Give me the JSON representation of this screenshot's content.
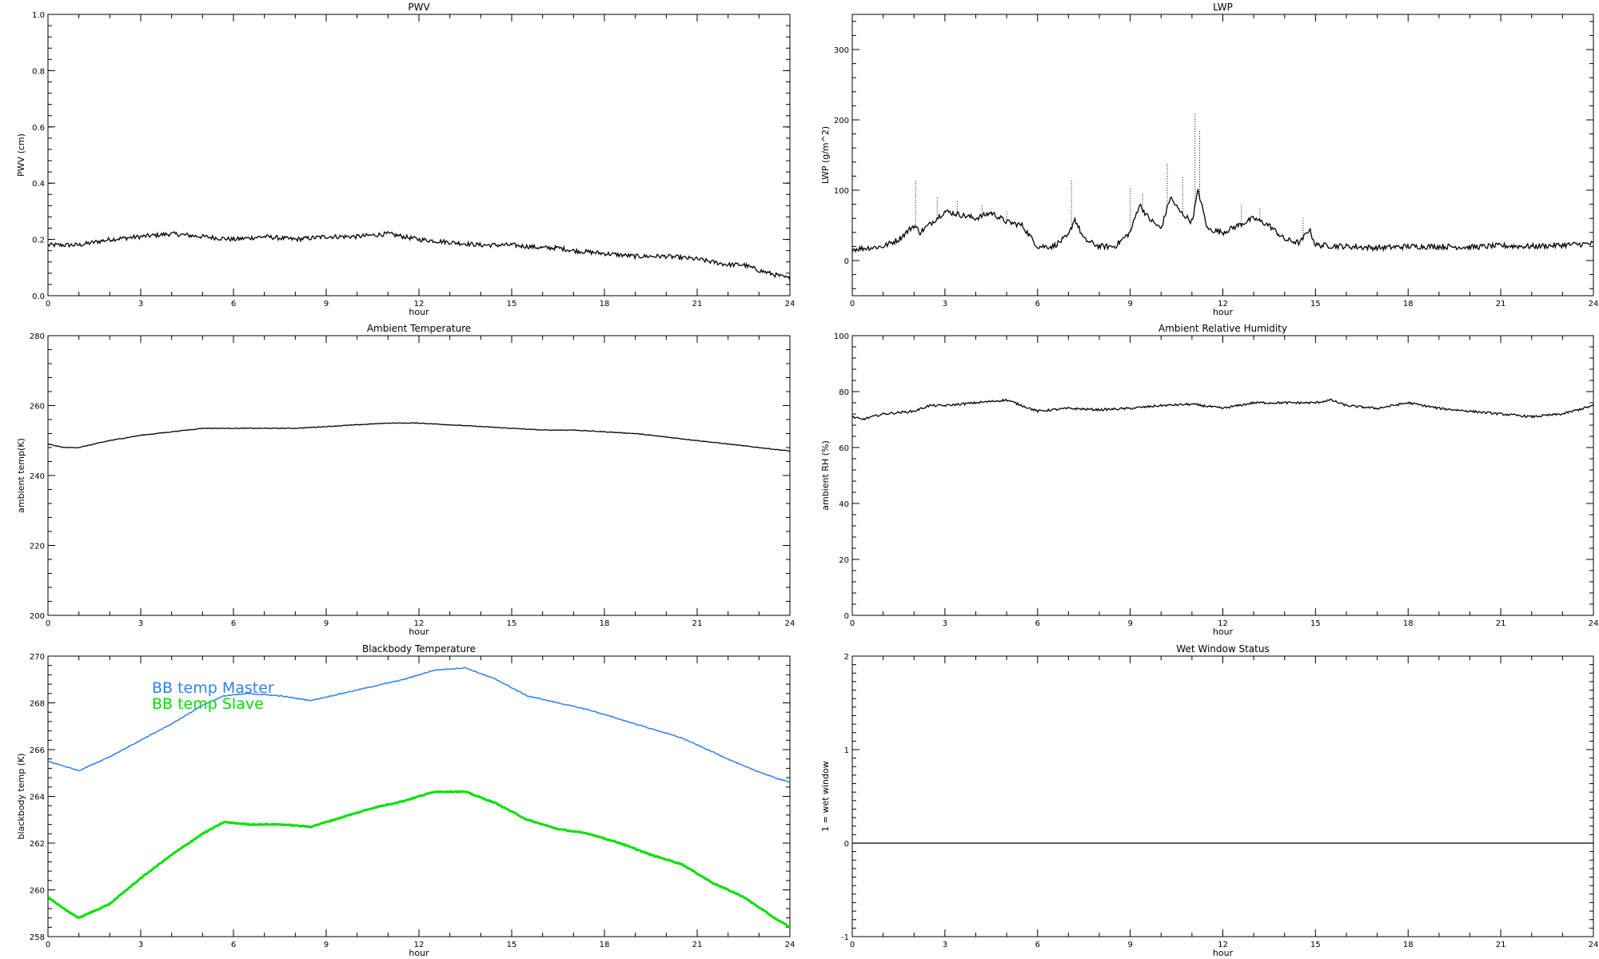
{
  "chart_data": [
    {
      "type": "line",
      "title": "PWV",
      "xlabel": "hour",
      "ylabel": "PWV (cm)",
      "xlim": [
        0,
        24
      ],
      "ylim": [
        0.0,
        1.0
      ],
      "xticks": [
        "0",
        "3",
        "6",
        "9",
        "12",
        "15",
        "18",
        "21",
        "24"
      ],
      "yticks": [
        "0.0",
        "0.2",
        "0.4",
        "0.6",
        "0.8",
        "1.0"
      ],
      "series": [
        {
          "color": "#000000",
          "noise": 0.008,
          "x": [
            0,
            1,
            2,
            3,
            4,
            5,
            6,
            7,
            8,
            9,
            10,
            11,
            11.5,
            12,
            13,
            14,
            15,
            16,
            16.5,
            17,
            18,
            19,
            20,
            21,
            22,
            22.5,
            23,
            24
          ],
          "values": [
            0.18,
            0.18,
            0.2,
            0.21,
            0.22,
            0.21,
            0.2,
            0.21,
            0.2,
            0.21,
            0.21,
            0.22,
            0.21,
            0.2,
            0.19,
            0.18,
            0.18,
            0.17,
            0.17,
            0.16,
            0.15,
            0.14,
            0.14,
            0.13,
            0.11,
            0.11,
            0.09,
            0.06
          ]
        }
      ]
    },
    {
      "type": "line",
      "title": "LWP",
      "xlabel": "hour",
      "ylabel": "LWP (g/m^2)",
      "xlim": [
        0,
        24
      ],
      "ylim": [
        -50,
        350
      ],
      "xticks": [
        "0",
        "3",
        "6",
        "9",
        "12",
        "15",
        "18",
        "21",
        "24"
      ],
      "yticks": [
        "0",
        "100",
        "200",
        "300"
      ],
      "series": [
        {
          "color": "#000000",
          "noise": 4,
          "x": [
            0,
            1,
            1.5,
            2,
            2.2,
            2.6,
            3,
            3.5,
            4,
            4.5,
            5,
            5.5,
            6,
            6.5,
            7,
            7.2,
            7.5,
            8,
            8.5,
            9,
            9.3,
            9.6,
            10,
            10.3,
            10.6,
            11,
            11.2,
            11.5,
            12,
            12.5,
            13,
            13.5,
            14,
            14.5,
            14.8,
            15,
            16,
            17,
            18,
            19,
            20,
            21,
            22,
            23,
            24
          ],
          "values": [
            16,
            20,
            30,
            50,
            40,
            55,
            70,
            65,
            60,
            68,
            55,
            50,
            20,
            20,
            35,
            60,
            30,
            20,
            20,
            40,
            80,
            60,
            45,
            90,
            70,
            55,
            100,
            45,
            40,
            50,
            60,
            50,
            30,
            25,
            45,
            22,
            20,
            18,
            20,
            20,
            19,
            21,
            20,
            22,
            24
          ],
          "spikes": [
            {
              "x": 2.05,
              "v": 115
            },
            {
              "x": 2.75,
              "v": 90
            },
            {
              "x": 3.4,
              "v": 85
            },
            {
              "x": 4.2,
              "v": 80
            },
            {
              "x": 5.0,
              "v": 70
            },
            {
              "x": 7.1,
              "v": 115
            },
            {
              "x": 9.0,
              "v": 105
            },
            {
              "x": 9.4,
              "v": 95
            },
            {
              "x": 10.2,
              "v": 138
            },
            {
              "x": 10.7,
              "v": 120
            },
            {
              "x": 11.1,
              "v": 210
            },
            {
              "x": 11.25,
              "v": 185
            },
            {
              "x": 12.6,
              "v": 80
            },
            {
              "x": 13.2,
              "v": 75
            },
            {
              "x": 14.6,
              "v": 60
            }
          ]
        }
      ]
    },
    {
      "type": "line",
      "title": "Ambient Temperature",
      "xlabel": "hour",
      "ylabel": "ambient temp(K)",
      "xlim": [
        0,
        24
      ],
      "ylim": [
        200,
        280
      ],
      "xticks": [
        "0",
        "3",
        "6",
        "9",
        "12",
        "15",
        "18",
        "21",
        "24"
      ],
      "yticks": [
        "200",
        "220",
        "240",
        "260",
        "280"
      ],
      "series": [
        {
          "color": "#000000",
          "noise": 0.1,
          "x": [
            0,
            0.5,
            1,
            2,
            3,
            4,
            5,
            6,
            7,
            8,
            9,
            10,
            11,
            12,
            13,
            14,
            15,
            16,
            17,
            18,
            19,
            20,
            21,
            22,
            23,
            24
          ],
          "values": [
            249,
            248,
            248,
            250,
            251.5,
            252.5,
            253.5,
            253.5,
            253.5,
            253.5,
            254,
            254.5,
            255,
            255,
            254.5,
            254,
            253.5,
            253,
            253,
            252.5,
            252,
            251,
            250,
            249,
            248,
            247
          ]
        }
      ]
    },
    {
      "type": "line",
      "title": "Ambient Relative Humidity",
      "xlabel": "hour",
      "ylabel": "ambient RH (%)",
      "xlim": [
        0,
        24
      ],
      "ylim": [
        0,
        100
      ],
      "xticks": [
        "0",
        "3",
        "6",
        "9",
        "12",
        "15",
        "18",
        "21",
        "24"
      ],
      "yticks": [
        "0",
        "20",
        "40",
        "60",
        "80",
        "100"
      ],
      "series": [
        {
          "color": "#000000",
          "noise": 0.4,
          "x": [
            0,
            0.3,
            1,
            2,
            2.5,
            3,
            4,
            5,
            5.5,
            6,
            7,
            8,
            9,
            10,
            11,
            12,
            13,
            14,
            15,
            15.5,
            16,
            17,
            18,
            19,
            20,
            21,
            22,
            23,
            24
          ],
          "values": [
            71,
            70,
            72,
            73,
            75,
            75,
            76,
            77,
            75,
            73,
            74,
            73.5,
            74,
            75,
            75.5,
            74,
            76,
            76,
            76,
            77,
            75,
            74,
            76,
            74,
            73,
            72,
            71,
            72,
            75
          ]
        }
      ]
    },
    {
      "type": "line",
      "title": "Blackbody Temperature",
      "xlabel": "hour",
      "ylabel": "blackbody temp (K)",
      "xlim": [
        0,
        24
      ],
      "ylim": [
        258,
        270
      ],
      "xticks": [
        "0",
        "3",
        "6",
        "9",
        "12",
        "15",
        "18",
        "21",
        "24"
      ],
      "yticks": [
        "258",
        "260",
        "262",
        "264",
        "266",
        "268",
        "270"
      ],
      "legend_position": "top-left",
      "series": [
        {
          "name": "BB temp Master",
          "color": "#3080f0",
          "noise": 0.02,
          "x": [
            0,
            0.5,
            1,
            2,
            3,
            4,
            5,
            5.7,
            6.5,
            7.5,
            8.5,
            9.5,
            10.5,
            11.5,
            12.5,
            13.5,
            14.5,
            15.5,
            16.5,
            17.5,
            18.5,
            19.5,
            20.5,
            21.5,
            22.5,
            23.5,
            24
          ],
          "values": [
            265.5,
            265.3,
            265.1,
            265.7,
            266.4,
            267.1,
            267.9,
            268.3,
            268.4,
            268.3,
            268.1,
            268.4,
            268.7,
            269.0,
            269.4,
            269.5,
            269.0,
            268.3,
            268.0,
            267.7,
            267.3,
            266.9,
            266.5,
            265.9,
            265.3,
            264.8,
            264.6
          ]
        },
        {
          "name": "BB temp Slave",
          "color": "#00e000",
          "noise": 0.02,
          "x": [
            0,
            0.5,
            1,
            2,
            3,
            4,
            5,
            5.7,
            6.5,
            7.5,
            8.5,
            9.5,
            10.5,
            11.5,
            12.5,
            13.5,
            14.5,
            15.5,
            16.5,
            17.5,
            18.5,
            19.5,
            20.5,
            21.5,
            22.5,
            23.5,
            24
          ],
          "values": [
            259.7,
            259.2,
            258.8,
            259.4,
            260.5,
            261.5,
            262.4,
            262.9,
            262.8,
            262.8,
            262.7,
            263.1,
            263.5,
            263.8,
            264.2,
            264.2,
            263.7,
            263.0,
            262.6,
            262.4,
            262.0,
            261.5,
            261.1,
            260.3,
            259.7,
            258.8,
            258.4
          ]
        }
      ]
    },
    {
      "type": "line",
      "title": "Wet Window Status",
      "xlabel": "hour",
      "ylabel": "1 = wet window",
      "xlim": [
        0,
        24
      ],
      "ylim": [
        -1,
        2
      ],
      "xticks": [
        "0",
        "3",
        "6",
        "9",
        "12",
        "15",
        "18",
        "21",
        "24"
      ],
      "yticks": [
        "-1",
        "0",
        "1",
        "2"
      ],
      "series": [
        {
          "color": "#000000",
          "noise": 0,
          "x": [
            0,
            24
          ],
          "values": [
            0,
            0
          ]
        }
      ]
    }
  ]
}
